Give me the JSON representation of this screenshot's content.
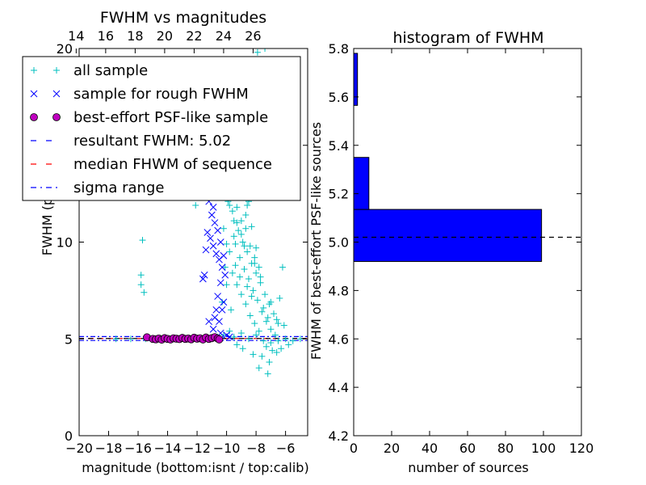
{
  "chart_data": [
    {
      "type": "scatter",
      "title": "FWHM vs magnitudes",
      "xlabel": "magnitude (bottom:isnt / top:calib)",
      "ylabel": "FWHM (pix)",
      "xlim": [
        -20,
        -4.5
      ],
      "ylim": [
        0,
        20
      ],
      "xticks": [
        "−20",
        "−18",
        "−16",
        "−14",
        "−12",
        "−10",
        "−8",
        "−6"
      ],
      "xtick_values": [
        -20,
        -18,
        -16,
        -14,
        -12,
        -10,
        -8,
        -6
      ],
      "yticks": [
        "0",
        "5",
        "10",
        "15",
        "20"
      ],
      "ytick_values": [
        0,
        5,
        10,
        15,
        20
      ],
      "top_xticks": [
        "14",
        "16",
        "18",
        "20",
        "22",
        "24",
        "26"
      ],
      "top_xtick_values": [
        14,
        16,
        18,
        20,
        22,
        24,
        26
      ],
      "top_axis_offset": 34.2,
      "legend_position": "upper-left",
      "legend": [
        {
          "label": "all sample",
          "marker": "plus",
          "color": "#00bfbf"
        },
        {
          "label": "sample for rough FWHM",
          "marker": "x",
          "color": "#0000ff"
        },
        {
          "label": "best-effort PSF-like sample",
          "marker": "circle",
          "color": "#bf00bf"
        },
        {
          "label": "resultant FWHM: 5.02",
          "marker": "dashed",
          "color": "#0000ff"
        },
        {
          "label": "median FHWM of sequence",
          "marker": "dashed",
          "color": "#ff0000"
        },
        {
          "label": "sigma range",
          "marker": "dashdot",
          "color": "#0000ff"
        }
      ],
      "resultant_fwhm": 5.02,
      "median_fwhm_sequence": 5.02,
      "sigma_range": [
        4.92,
        5.12
      ],
      "series": [
        {
          "name": "all sample",
          "marker": "plus",
          "color": "#00bfbf",
          "points": [
            [
              -15.7,
              10.1
            ],
            [
              -15.8,
              8.3
            ],
            [
              -15.6,
              7.4
            ],
            [
              -15.8,
              7.8
            ],
            [
              -12.1,
              11.9
            ],
            [
              -11.3,
              16.5
            ],
            [
              -10.1,
              18.1
            ],
            [
              -9.9,
              15.8
            ],
            [
              -9.8,
              11.9
            ],
            [
              -9.2,
              13.6
            ],
            [
              -8.9,
              12.4
            ],
            [
              -8.6,
              11.9
            ],
            [
              -8.3,
              10.8
            ],
            [
              -7.4,
              20.0
            ],
            [
              -7.9,
              19.8
            ],
            [
              -6.2,
              8.7
            ],
            [
              -6.4,
              7.1
            ],
            [
              -7.2,
              3.2
            ],
            [
              -7.8,
              3.5
            ],
            [
              -9.4,
              9.9
            ],
            [
              -9.1,
              9.2
            ],
            [
              -8.8,
              8.6
            ],
            [
              -8.5,
              8.1
            ],
            [
              -8.2,
              7.5
            ],
            [
              -7.9,
              7.0
            ],
            [
              -7.6,
              6.4
            ],
            [
              -7.3,
              5.9
            ],
            [
              -7.0,
              5.5
            ],
            [
              -6.7,
              5.2
            ],
            [
              -9.6,
              8.4
            ],
            [
              -9.3,
              7.8
            ],
            [
              -9.0,
              7.3
            ],
            [
              -8.7,
              6.8
            ],
            [
              -8.4,
              6.2
            ],
            [
              -8.1,
              5.8
            ],
            [
              -7.8,
              5.4
            ],
            [
              -10.3,
              6.9
            ],
            [
              -10.0,
              7.8
            ],
            [
              -9.7,
              6.5
            ],
            [
              -9.5,
              11.1
            ],
            [
              -9.2,
              10.6
            ],
            [
              -8.9,
              10.0
            ],
            [
              -8.6,
              9.5
            ],
            [
              -8.3,
              8.9
            ],
            [
              -8.0,
              8.4
            ],
            [
              -7.7,
              7.9
            ],
            [
              -7.4,
              7.3
            ],
            [
              -7.1,
              6.8
            ],
            [
              -6.8,
              6.3
            ],
            [
              -6.5,
              5.8
            ],
            [
              -9.9,
              13.2
            ],
            [
              -9.6,
              12.5
            ],
            [
              -9.3,
              11.8
            ],
            [
              -9.0,
              11.1
            ],
            [
              -8.7,
              10.7
            ],
            [
              -8.4,
              9.8
            ],
            [
              -8.1,
              9.2
            ],
            [
              -7.8,
              8.7
            ],
            [
              -9.7,
              14.4
            ],
            [
              -9.4,
              13.1
            ],
            [
              -8.8,
              12.9
            ],
            [
              -8.5,
              12.1
            ],
            [
              -10.2,
              5.2
            ],
            [
              -9.8,
              5.4
            ],
            [
              -9.5,
              5.1
            ],
            [
              -9.0,
              5.3
            ],
            [
              -8.5,
              5.0
            ],
            [
              -8.0,
              5.2
            ],
            [
              -7.5,
              4.9
            ],
            [
              -7.0,
              4.8
            ],
            [
              -6.5,
              4.9
            ],
            [
              -6.0,
              5.0
            ],
            [
              -5.5,
              4.9
            ],
            [
              -5.0,
              5.0
            ],
            [
              -10.6,
              5.1
            ],
            [
              -11.5,
              5.0
            ],
            [
              -12.5,
              5.0
            ],
            [
              -13.5,
              5.0
            ],
            [
              -14.5,
              5.0
            ],
            [
              -15.5,
              5.0
            ],
            [
              -16.5,
              5.0
            ],
            [
              -17.5,
              5.0
            ],
            [
              -8.2,
              4.2
            ],
            [
              -7.6,
              4.1
            ],
            [
              -7.1,
              3.8
            ],
            [
              -6.6,
              4.3
            ],
            [
              -8.9,
              4.5
            ],
            [
              -9.3,
              4.7
            ],
            [
              -7.2,
              6.1
            ],
            [
              -7.5,
              6.6
            ],
            [
              -8.3,
              7.2
            ],
            [
              -8.6,
              7.7
            ],
            [
              -9.1,
              8.2
            ],
            [
              -9.4,
              8.8
            ],
            [
              -8.0,
              9.7
            ],
            [
              -8.7,
              11.4
            ],
            [
              -9.2,
              12.3
            ],
            [
              -9.5,
              10.3
            ],
            [
              -9.8,
              9.5
            ],
            [
              -10.1,
              8.7
            ],
            [
              -7.3,
              4.6
            ],
            [
              -6.9,
              4.4
            ],
            [
              -6.3,
              4.5
            ],
            [
              -5.8,
              4.7
            ],
            [
              -6.1,
              5.7
            ],
            [
              -6.6,
              6.0
            ],
            [
              -7.0,
              6.9
            ],
            [
              -7.7,
              8.2
            ],
            [
              -8.1,
              8.9
            ],
            [
              -8.8,
              9.8
            ],
            [
              -9.0,
              10.4
            ],
            [
              -9.3,
              11.0
            ],
            [
              -9.6,
              11.6
            ],
            [
              -9.9,
              12.1
            ],
            [
              -10.2,
              10.7
            ],
            [
              -10.0,
              9.9
            ]
          ]
        },
        {
          "name": "sample for rough FWHM",
          "marker": "x",
          "color": "#0000ff",
          "points": [
            [
              -11.2,
              12.1
            ],
            [
              -11.1,
              12.5
            ],
            [
              -10.9,
              11.8
            ],
            [
              -11.0,
              11.4
            ],
            [
              -10.8,
              11.0
            ],
            [
              -11.3,
              10.5
            ],
            [
              -11.1,
              10.2
            ],
            [
              -10.9,
              9.8
            ],
            [
              -11.4,
              9.6
            ],
            [
              -10.7,
              9.4
            ],
            [
              -10.5,
              9.1
            ],
            [
              -11.6,
              8.1
            ],
            [
              -11.5,
              8.3
            ],
            [
              -10.4,
              7.9
            ],
            [
              -10.6,
              7.2
            ],
            [
              -10.7,
              6.5
            ],
            [
              -10.8,
              6.1
            ],
            [
              -10.5,
              5.9
            ],
            [
              -10.3,
              6.5
            ],
            [
              -10.2,
              6.9
            ],
            [
              -10.6,
              10.6
            ],
            [
              -10.4,
              10.0
            ],
            [
              -10.2,
              9.3
            ],
            [
              -10.3,
              8.7
            ],
            [
              -10.1,
              8.3
            ],
            [
              -11.2,
              5.9
            ],
            [
              -10.9,
              5.5
            ],
            [
              -10.4,
              5.3
            ],
            [
              -10.0,
              5.2
            ],
            [
              -9.8,
              5.1
            ]
          ]
        },
        {
          "name": "best-effort PSF-like sample",
          "marker": "circle",
          "color": "#bf00bf",
          "points": [
            [
              -15.4,
              5.08
            ],
            [
              -15.0,
              5.0
            ],
            [
              -14.8,
              4.98
            ],
            [
              -14.6,
              5.02
            ],
            [
              -14.4,
              4.96
            ],
            [
              -14.2,
              5.04
            ],
            [
              -14.0,
              5.0
            ],
            [
              -13.8,
              4.97
            ],
            [
              -13.6,
              5.03
            ],
            [
              -13.4,
              5.01
            ],
            [
              -13.2,
              4.99
            ],
            [
              -13.0,
              5.05
            ],
            [
              -12.8,
              5.0
            ],
            [
              -12.6,
              5.02
            ],
            [
              -12.4,
              4.98
            ],
            [
              -12.2,
              5.06
            ],
            [
              -12.0,
              5.01
            ],
            [
              -11.8,
              5.03
            ],
            [
              -11.6,
              4.97
            ],
            [
              -11.4,
              5.07
            ],
            [
              -11.2,
              5.0
            ],
            [
              -11.0,
              5.04
            ],
            [
              -10.8,
              5.09
            ],
            [
              -10.6,
              5.02
            ],
            [
              -10.5,
              4.97
            ]
          ]
        }
      ]
    },
    {
      "type": "bar",
      "orientation": "horizontal",
      "title": "histogram of FWHM",
      "xlabel": "number of sources",
      "ylabel": "FWHM of best-effort PSF-like sources",
      "xlim": [
        0,
        120
      ],
      "ylim": [
        4.2,
        5.8
      ],
      "xticks": [
        "0",
        "20",
        "40",
        "60",
        "80",
        "100",
        "120"
      ],
      "xtick_values": [
        0,
        20,
        40,
        60,
        80,
        100,
        120
      ],
      "yticks": [
        "4.2",
        "4.4",
        "4.6",
        "4.8",
        "5.0",
        "5.2",
        "5.4",
        "5.6",
        "5.8"
      ],
      "ytick_values": [
        4.2,
        4.4,
        4.6,
        4.8,
        5.0,
        5.2,
        5.4,
        5.6,
        5.8
      ],
      "bar_color": "#0000ff",
      "bins": [
        {
          "lo": 4.92,
          "hi": 5.135,
          "count": 99
        },
        {
          "lo": 5.135,
          "hi": 5.35,
          "count": 8
        },
        {
          "lo": 5.565,
          "hi": 5.78,
          "count": 2
        }
      ],
      "reference_line": 5.02
    }
  ]
}
